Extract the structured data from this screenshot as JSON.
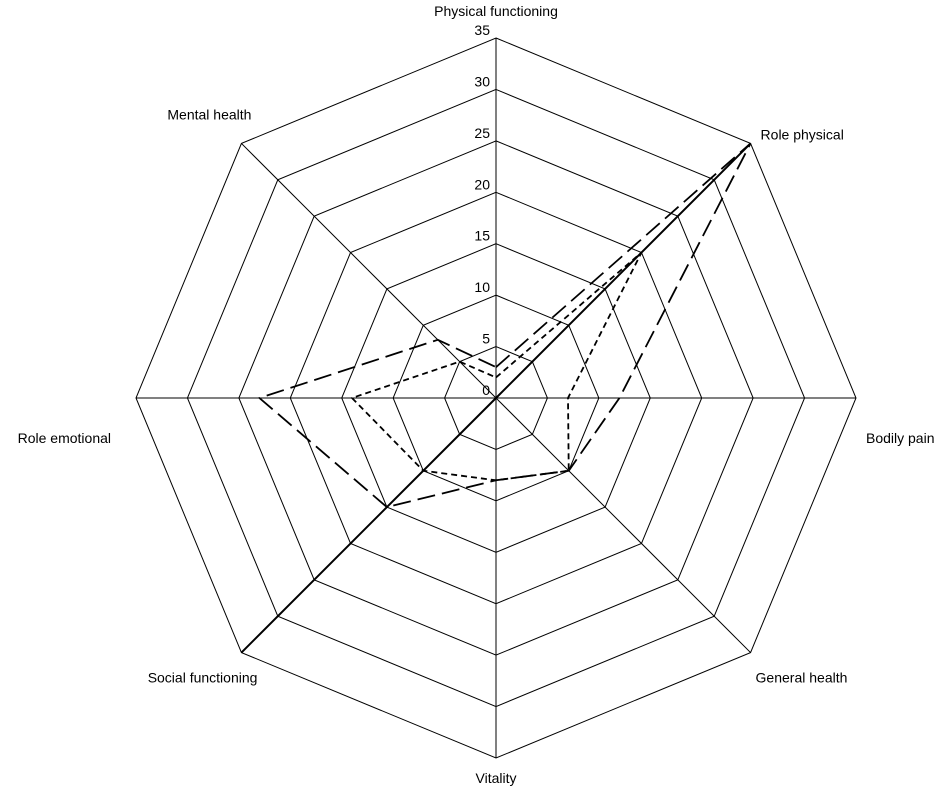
{
  "chart_data": {
    "type": "radar",
    "axes": [
      "Physical functioning",
      "Role physical",
      "Bodily pain",
      "General health",
      "Vitality",
      "Social functioning",
      "Role emotional",
      "Mental health"
    ],
    "ticks": [
      "0",
      "5",
      "10",
      "15",
      "20",
      "25",
      "30",
      "35"
    ],
    "rlim": [
      0,
      35
    ],
    "grid": true,
    "legend": "none",
    "series": [
      {
        "values": [
          0,
          35,
          0,
          0,
          0,
          35,
          0,
          0
        ],
        "style": "solid"
      },
      {
        "values": [
          3,
          35,
          12,
          10,
          8,
          15,
          23,
          8
        ],
        "style": "long-dash"
      },
      {
        "values": [
          2,
          20,
          7,
          10,
          8,
          10,
          14,
          5
        ],
        "style": "short-dash"
      }
    ]
  }
}
